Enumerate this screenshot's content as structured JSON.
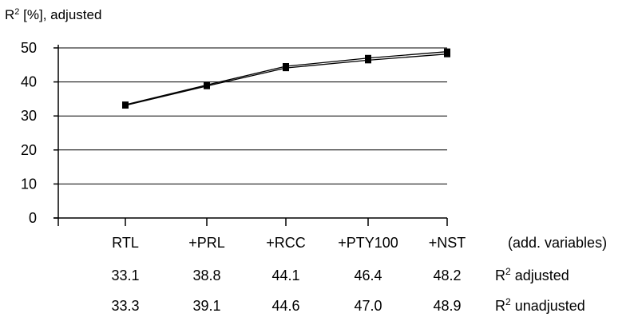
{
  "chart_data": {
    "type": "line",
    "ylabel": "R",
    "ylabel_sup": "2",
    "ylabel_rest": " [%], adjusted",
    "ylim": [
      0,
      50
    ],
    "yticks": [
      0,
      10,
      20,
      30,
      40,
      50
    ],
    "grid": true,
    "categories": [
      "RTL",
      "+PRL",
      "+RCC",
      "+PTY100",
      "+NST"
    ],
    "category_axis_note": "(add. variables)",
    "series": [
      {
        "key": "adjusted",
        "values": [
          33.1,
          38.8,
          44.1,
          46.4,
          48.2
        ],
        "row_label": "R",
        "row_label_sup": "2",
        "row_label_rest": " adjusted"
      },
      {
        "key": "unadjusted",
        "values": [
          33.3,
          39.1,
          44.6,
          47.0,
          48.9
        ],
        "row_label": "R",
        "row_label_sup": "2",
        "row_label_rest": " unadjusted"
      }
    ],
    "value_rows": [
      [
        "33.1",
        "38.8",
        "44.1",
        "46.4",
        "48.2"
      ],
      [
        "33.3",
        "39.1",
        "44.6",
        "47.0",
        "48.9"
      ]
    ],
    "line_color": "#000000",
    "grid_color": "#000000"
  }
}
